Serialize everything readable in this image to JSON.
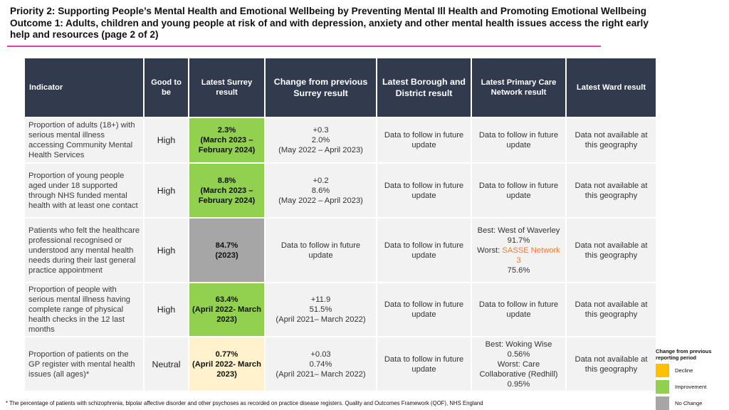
{
  "title": {
    "line1": "Priority 2: Supporting People’s Mental Health and Emotional Wellbeing by Preventing Mental Ill Health and Promoting Emotional Wellbeing",
    "line2": "Outcome 1: Adults, children and young people at risk of and with depression, anxiety and other mental health issues access the right early",
    "line3": "help and resources (page 2 of 2)"
  },
  "accent_color": "#e8409a",
  "table": {
    "headers": {
      "indicator": "Indicator",
      "good_to_be": "Good to be",
      "latest_surrey": "Latest Surrey result",
      "change": "Change from previous Surrey result",
      "borough": "Latest Borough and District result",
      "pcn": "Latest Primary Care Network result",
      "ward": "Latest Ward result"
    },
    "rows": [
      {
        "indicator": "Proportion of adults (18+) with serious mental illness accessing Community Mental Health Services",
        "good_to_be": "High",
        "result_value": "2.3%",
        "result_period": "(March 2023 – February 2024)",
        "change_delta": "+0.3",
        "change_prev": "2.0%",
        "change_period": "(May 2022 – April 2023)",
        "borough": "Data to follow in future update",
        "pcn_text": "Data to follow in future update",
        "ward": "Data not available at this geography"
      },
      {
        "indicator": "Proportion of young people aged under 18 supported through NHS funded mental health with at least one contact",
        "good_to_be": "High",
        "result_value": "8.8%",
        "result_period": "(March 2023 – February 2024)",
        "change_delta": "+0.2",
        "change_prev": "8.6%",
        "change_period": "(May 2022 – April 2023)",
        "borough": "Data to follow in future update",
        "pcn_text": "Data to follow in future update",
        "ward": "Data not available at this geography"
      },
      {
        "indicator": "Patients who felt the healthcare professional recognised or understood any mental health needs during their last general practice appointment",
        "good_to_be": "High",
        "result_value": "84.7%",
        "result_period": "(2023)",
        "change_text": "Data to follow in future update",
        "borough": "Data to follow in future update",
        "pcn_best": "Best: West of Waverley 91.7%",
        "pcn_worst_label": "Worst:",
        "pcn_worst_name": "SASSE Network 3",
        "pcn_worst_value": "75.6%",
        "ward": "Data not available at this geography"
      },
      {
        "indicator": "Proportion of people with serious mental illness having complete range of physical health checks in the 12 last months",
        "good_to_be": "High",
        "result_value": "63.4%",
        "result_period": "(April 2022- March 2023)",
        "change_delta": "+11.9",
        "change_prev": "51.5%",
        "change_period": "(April 2021– March 2022)",
        "borough": "Data to follow in future update",
        "pcn_text": "Data to follow in future update",
        "ward": "Data not available at this geography"
      },
      {
        "indicator": "Proportion of patients on the GP register with mental health issues (all ages)*",
        "good_to_be": "Neutral",
        "result_value": "0.77%",
        "result_period": "(April 2022- March 2023)",
        "change_delta": "+0.03",
        "change_prev": "0.74%",
        "change_period": "(April 2021– March 2022)",
        "borough": "Data to follow in future update",
        "pcn_best": "Best: Woking Wise 0.56%",
        "pcn_worst": "Worst: Care Collaborative (Redhill) 0.95%",
        "ward": "Data not available at this geography"
      }
    ]
  },
  "legend": {
    "title": "Change from previous reporting period",
    "items": [
      {
        "label": "Decline",
        "color": "#ffc000"
      },
      {
        "label": "Improvement",
        "color": "#92d050"
      },
      {
        "label": "No Change",
        "color": "#a6a6a6"
      }
    ]
  },
  "colors": {
    "header_bg": "#323b4e",
    "improvement": "#92d050",
    "no_change": "#a6a6a6",
    "neutral": "#fff2cc",
    "worst_highlight": "#ed7d31"
  },
  "footnote": "* The percentage of patients with schizophrenia, bipolar affective disorder and other psychoses as recorded on practice disease registers. Quality and Outcomes Framework (QOF), NHS England"
}
